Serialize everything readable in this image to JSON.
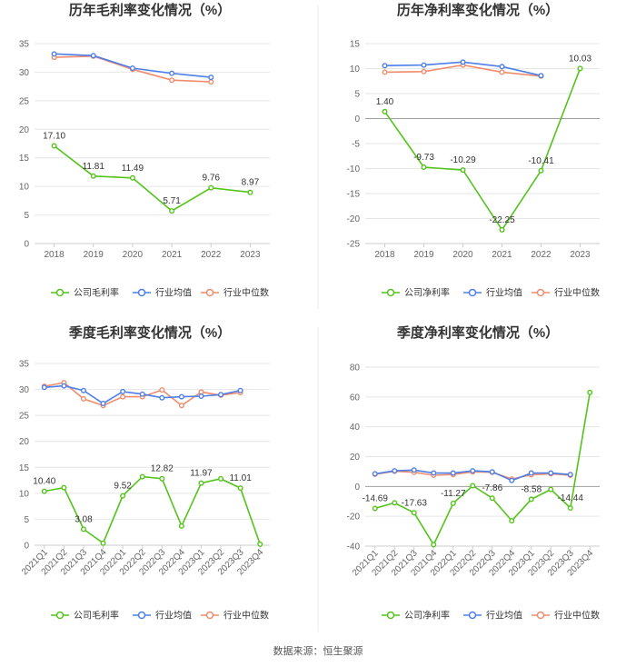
{
  "chart_data": [
    {
      "type": "line",
      "title": "历年毛利率变化情况（%）",
      "categories": [
        "2018",
        "2019",
        "2020",
        "2021",
        "2022",
        "2023"
      ],
      "ylim": [
        0,
        35
      ],
      "yticks": [
        0,
        5,
        10,
        15,
        20,
        25,
        30,
        35
      ],
      "series": [
        {
          "name": "公司毛利率",
          "color": "#52c41a",
          "values": [
            17.1,
            11.81,
            11.49,
            5.71,
            9.76,
            8.97
          ],
          "labels": [
            "17.10",
            "11.81",
            "11.49",
            "5.71",
            "9.76",
            "8.97"
          ]
        },
        {
          "name": "行业均值",
          "color": "#4e7ee8",
          "values": [
            33.2,
            32.9,
            30.7,
            29.8,
            29.1,
            null
          ]
        },
        {
          "name": "行业中位数",
          "color": "#f08c6c",
          "values": [
            32.6,
            32.8,
            30.5,
            28.6,
            28.3,
            null
          ]
        }
      ]
    },
    {
      "type": "line",
      "title": "历年净利率变化情况（%）",
      "categories": [
        "2018",
        "2019",
        "2020",
        "2021",
        "2022",
        "2023"
      ],
      "ylim": [
        -25,
        15
      ],
      "yticks": [
        -25,
        -20,
        -15,
        -10,
        -5,
        0,
        5,
        10,
        15
      ],
      "series": [
        {
          "name": "公司净利率",
          "color": "#52c41a",
          "values": [
            1.4,
            -9.73,
            -10.29,
            -22.25,
            -10.41,
            10.03
          ],
          "labels": [
            "1.40",
            "-9.73",
            "-10.29",
            "-22.25",
            "-10.41",
            "10.03"
          ]
        },
        {
          "name": "行业均值",
          "color": "#4e7ee8",
          "values": [
            10.6,
            10.7,
            11.3,
            10.4,
            8.6,
            null
          ]
        },
        {
          "name": "行业中位数",
          "color": "#f08c6c",
          "values": [
            9.3,
            9.4,
            10.7,
            9.3,
            8.5,
            null
          ]
        }
      ]
    },
    {
      "type": "line",
      "title": "季度毛利率变化情况（%）",
      "categories": [
        "2021Q1",
        "2021Q2",
        "2021Q3",
        "2021Q4",
        "2022Q1",
        "2022Q2",
        "2022Q3",
        "2022Q4",
        "2023Q1",
        "2023Q2",
        "2023Q3",
        "2023Q4"
      ],
      "ylim": [
        0,
        35
      ],
      "yticks": [
        0,
        5,
        10,
        15,
        20,
        25,
        30,
        35
      ],
      "series": [
        {
          "name": "公司毛利率",
          "color": "#52c41a",
          "values": [
            10.4,
            11.1,
            3.08,
            0.4,
            9.52,
            13.2,
            12.82,
            3.7,
            11.97,
            12.8,
            11.01,
            0.2
          ],
          "labels": [
            "10.40",
            "",
            "3.08",
            "",
            "9.52",
            "",
            "12.82",
            "",
            "11.97",
            "",
            "11.01",
            ""
          ]
        },
        {
          "name": "行业均值",
          "color": "#4e7ee8",
          "values": [
            30.4,
            30.7,
            29.8,
            27.3,
            29.6,
            29.1,
            28.4,
            28.6,
            28.7,
            29.0,
            29.8,
            null
          ]
        },
        {
          "name": "行业中位数",
          "color": "#f08c6c",
          "values": [
            30.6,
            31.3,
            28.2,
            26.9,
            28.6,
            28.6,
            29.9,
            26.9,
            29.5,
            28.9,
            29.4,
            null
          ]
        }
      ]
    },
    {
      "type": "line",
      "title": "季度净利率变化情况（%）",
      "categories": [
        "2021Q1",
        "2021Q2",
        "2021Q3",
        "2021Q4",
        "2022Q1",
        "2022Q2",
        "2022Q3",
        "2022Q4",
        "2023Q1",
        "2023Q2",
        "2023Q3",
        "2023Q4"
      ],
      "ylim": [
        -40,
        80
      ],
      "yticks": [
        -40,
        -20,
        0,
        20,
        40,
        60,
        80
      ],
      "series": [
        {
          "name": "公司净利率",
          "color": "#52c41a",
          "values": [
            -14.69,
            -11.0,
            -17.63,
            -39.0,
            -11.27,
            0.5,
            -7.86,
            -23.0,
            -8.58,
            -2.0,
            -14.44,
            63.0
          ],
          "labels": [
            "-14.69",
            "",
            "-17.63",
            "",
            "-11.27",
            "",
            "-7.86",
            "",
            "-8.58",
            "",
            "-14.44",
            ""
          ]
        },
        {
          "name": "行业均值",
          "color": "#4e7ee8",
          "values": [
            8.5,
            10.5,
            11.0,
            9.0,
            9.0,
            10.5,
            9.8,
            4.0,
            9.0,
            9.0,
            8.0,
            null
          ]
        },
        {
          "name": "行业中位数",
          "color": "#f08c6c",
          "values": [
            8.2,
            10.2,
            9.5,
            7.5,
            8.0,
            9.8,
            9.5,
            5.0,
            7.8,
            8.5,
            7.5,
            null
          ]
        }
      ]
    }
  ],
  "footer": {
    "source": "数据来源：恒生聚源"
  }
}
